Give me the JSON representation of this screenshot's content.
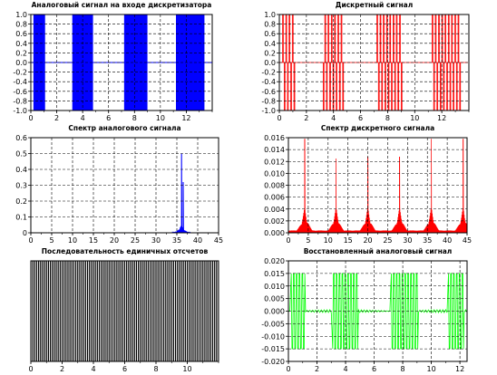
{
  "chart_data": [
    {
      "id": "analog",
      "type": "line",
      "title": "Аналоговый сигнал на входе дискретизатора",
      "xlim": [
        0,
        14
      ],
      "ylim": [
        -1,
        1
      ],
      "xticks": [
        0,
        2,
        4,
        6,
        8,
        10,
        12
      ],
      "xticklabels": [
        "0",
        "2",
        "4",
        "6",
        "8",
        "10",
        "12"
      ],
      "yticks": [
        -1,
        -0.8,
        -0.6,
        -0.4,
        -0.2,
        0,
        0.2,
        0.4,
        0.6,
        0.8,
        1
      ],
      "yticklabels": [
        "-1.0",
        "-0.8",
        "-0.6",
        "-0.4",
        "-0.2",
        "0.0",
        "0.2",
        "0.4",
        "0.6",
        "0.8",
        "1.0"
      ],
      "grid": true,
      "color": "#0000ff",
      "series": [
        {
          "signal": "amplitude-modulated carrier, unit amplitude",
          "burst_starts": [
            0.2,
            3.2,
            7.2,
            11.2
          ],
          "burst_ends": [
            1.1,
            4.8,
            9.0,
            13.4
          ],
          "amplitude": 1
        }
      ]
    },
    {
      "id": "discrete",
      "type": "line",
      "title": "Дискретный сигнал",
      "xlim": [
        0,
        14
      ],
      "ylim": [
        -1,
        1
      ],
      "xticks": [
        0,
        2,
        4,
        6,
        8,
        10,
        12
      ],
      "xticklabels": [
        "0",
        "2",
        "4",
        "6",
        "8",
        "10",
        "12"
      ],
      "yticks": [
        -1,
        -0.8,
        -0.6,
        -0.4,
        -0.2,
        0,
        0.2,
        0.4,
        0.6,
        0.8,
        1
      ],
      "yticklabels": [
        "-1.0",
        "-0.8",
        "-0.6",
        "-0.4",
        "-0.2",
        "0.0",
        "0.2",
        "0.4",
        "0.6",
        "0.8",
        "1.0"
      ],
      "grid": true,
      "color": "#ff0000",
      "series": [
        {
          "signal": "sampled square bursts",
          "bursts": [
            [
              0.2,
              1.2
            ],
            [
              3.2,
              4.8
            ],
            [
              7.2,
              9.0
            ],
            [
              11.2,
              13.4
            ]
          ],
          "amplitude": 1
        }
      ]
    },
    {
      "id": "analog-spectrum",
      "type": "line",
      "title": "Спектр аналогового сигнала",
      "xlim": [
        0,
        45
      ],
      "ylim": [
        0,
        0.6
      ],
      "xticks": [
        0,
        5,
        10,
        15,
        20,
        25,
        30,
        35,
        40,
        45
      ],
      "xticklabels": [
        "0",
        "5",
        "10",
        "15",
        "20",
        "25",
        "30",
        "35",
        "40",
        "45"
      ],
      "yticks": [
        0,
        0.1,
        0.2,
        0.3,
        0.4,
        0.5,
        0.6
      ],
      "yticklabels": [
        "0",
        "0.1",
        "0.2",
        "0.3",
        "0.4",
        "0.5",
        "0.6"
      ],
      "grid": true,
      "color": "#0000ff",
      "series": [
        {
          "peak_x": 36.1,
          "peak_y": 0.5,
          "second_peak_x": 36.5,
          "second_peak_y": 0.32,
          "spread": 2.2
        }
      ]
    },
    {
      "id": "discrete-spectrum",
      "type": "line",
      "title": "Спектр дискретного сигнала",
      "xlim": [
        0,
        45
      ],
      "ylim": [
        0,
        0.016
      ],
      "xticks": [
        0,
        5,
        10,
        15,
        20,
        25,
        30,
        35,
        40,
        45
      ],
      "xticklabels": [
        "0",
        "5",
        "10",
        "15",
        "20",
        "25",
        "30",
        "35",
        "40",
        "45"
      ],
      "yticks": [
        0,
        0.002,
        0.004,
        0.006,
        0.008,
        0.01,
        0.012,
        0.014,
        0.016
      ],
      "yticklabels": [
        "0.000",
        "0.002",
        "0.004",
        "0.006",
        "0.008",
        "0.010",
        "0.012",
        "0.014",
        "0.016"
      ],
      "grid": true,
      "color": "#ff0000",
      "series": [
        {
          "peaks_x": [
            4.1,
            12.0,
            20.0,
            28.0,
            36.0,
            44.0
          ],
          "peaks_y": [
            0.0158,
            0.0125,
            0.0128,
            0.0128,
            0.0158,
            0.0158
          ],
          "spread": 2.4
        }
      ]
    },
    {
      "id": "pulse-train",
      "type": "line",
      "title": "Последовательность  единичных отсчетов",
      "xlim": [
        0,
        12
      ],
      "ylim": [
        0,
        1
      ],
      "xticks": [
        0,
        2,
        4,
        6,
        8,
        10
      ],
      "xticklabels": [
        "0",
        "2",
        "4",
        "6",
        "8",
        "10"
      ],
      "yticks": [],
      "yticklabels": [],
      "grid": true,
      "color": "#000000",
      "series": [
        {
          "period": 0.125,
          "amplitude": 1
        }
      ]
    },
    {
      "id": "reconstructed",
      "type": "line",
      "title": "Восстановленный аналоговый сигнал",
      "xlim": [
        0,
        12.5
      ],
      "ylim": [
        -0.02,
        0.02
      ],
      "xticks": [
        0,
        2,
        4,
        6,
        8,
        10,
        12
      ],
      "xticklabels": [
        "0",
        "2",
        "4",
        "6",
        "8",
        "10",
        "12"
      ],
      "yticks": [
        -0.02,
        -0.015,
        -0.01,
        -0.005,
        0,
        0.005,
        0.01,
        0.015,
        0.02
      ],
      "yticklabels": [
        "-0.020",
        "-0.015",
        "-0.010",
        "-0.005",
        "0.000",
        "0.005",
        "0.010",
        "0.015",
        "0.020"
      ],
      "grid": true,
      "color": "#00ff00",
      "series": [
        {
          "bursts": [
            [
              0.15,
              1.1
            ],
            [
              3.1,
              4.8
            ],
            [
              7.1,
              9.0
            ],
            [
              11.1,
              12.2
            ]
          ],
          "amplitude": 0.015
        }
      ]
    }
  ]
}
